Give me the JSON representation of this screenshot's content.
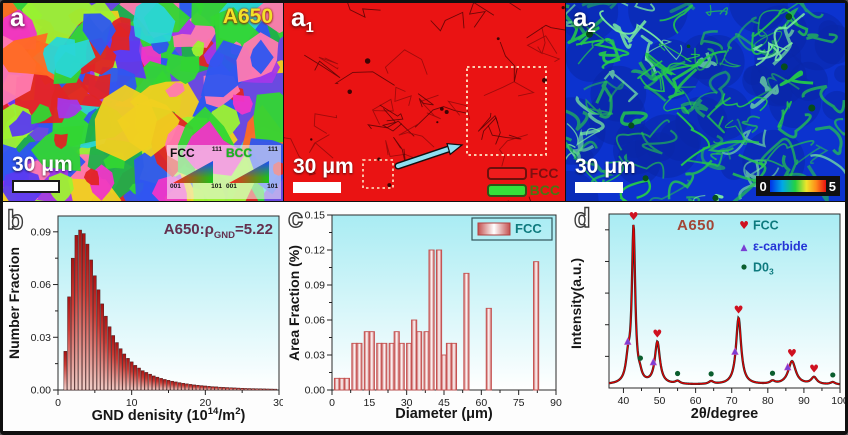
{
  "figure": {
    "panels": {
      "a": {
        "label": "a",
        "tag": "A650",
        "scalebar_text": "30 μm",
        "inset": {
          "fcc_label": "FCC",
          "bcc_label": "BCC",
          "corner_111": "111",
          "corner_001": "001",
          "corner_101": "101"
        }
      },
      "a1": {
        "label": "a",
        "sub": "1",
        "scalebar_text": "30 μm",
        "legend": [
          {
            "label": "FCC",
            "color": "#ee1c1c",
            "text_color": "#7e1010"
          },
          {
            "label": "BCC",
            "color": "#35e23a",
            "text_color": "#497612"
          }
        ]
      },
      "a2": {
        "label": "a",
        "sub": "2",
        "scalebar_text": "30 μm",
        "colorbar": {
          "min": "0",
          "max": "5"
        }
      }
    }
  },
  "chart_data": [
    {
      "id": "b",
      "panel_label": "b",
      "type": "bar",
      "title": "",
      "ylabel": "Number Fraction",
      "xlabel": "GND denisity (10^14/m^2)",
      "xlabel_parts": {
        "pre": "GND denisity (10",
        "sup1": "14",
        "mid": "/m",
        "sup2": "2",
        "end": ")"
      },
      "annotation": "A650: ρGND=5.22",
      "annotation_parts": {
        "name": "A650:",
        "symbol": "ρ",
        "sub": "GND",
        "value": "=5.22"
      },
      "x_start": 1.0,
      "x_step": 0.5,
      "values": [
        0.022,
        0.053,
        0.075,
        0.088,
        0.091,
        0.089,
        0.083,
        0.074,
        0.065,
        0.057,
        0.049,
        0.042,
        0.036,
        0.031,
        0.027,
        0.0235,
        0.0205,
        0.018,
        0.016,
        0.014,
        0.0125,
        0.011,
        0.01,
        0.009,
        0.008,
        0.0073,
        0.0066,
        0.006,
        0.0055,
        0.005,
        0.0046,
        0.0042,
        0.0038,
        0.0035,
        0.0032,
        0.0029,
        0.0027,
        0.0025,
        0.0023,
        0.0021,
        0.0019,
        0.0018,
        0.0016,
        0.0015,
        0.0014,
        0.0013,
        0.0012,
        0.0011,
        0.001,
        0.0009,
        0.00085,
        0.0008,
        0.00075,
        0.0007,
        0.00065,
        0.0006,
        0.00055,
        0.0005
      ],
      "xlim": [
        0,
        30
      ],
      "ylim": [
        0,
        0.099
      ],
      "xticks": [
        0,
        10,
        20,
        30
      ],
      "yticks": [
        "0.00",
        "0.03",
        "0.06",
        "0.09"
      ],
      "bar_color_top": "#a81212",
      "bar_color_bottom": "#f0cfc9"
    },
    {
      "id": "c",
      "panel_label": "c",
      "type": "bar",
      "title": "",
      "ylabel": "Area Fraction (%)",
      "xlabel": "Diameter (μm)",
      "legend": [
        {
          "label": "FCC",
          "text_color": "#0e7a7e"
        }
      ],
      "x": [
        2,
        4,
        6,
        9,
        11,
        14,
        16,
        19,
        21,
        24,
        26,
        28,
        31,
        33,
        35,
        38,
        40,
        43,
        45,
        47,
        49,
        54,
        63,
        82
      ],
      "values": [
        0.01,
        0.01,
        0.01,
        0.04,
        0.04,
        0.05,
        0.05,
        0.04,
        0.04,
        0.04,
        0.05,
        0.04,
        0.04,
        0.06,
        0.05,
        0.05,
        0.12,
        0.12,
        0.03,
        0.04,
        0.04,
        0.1,
        0.07,
        0.11
      ],
      "xlim": [
        0,
        90
      ],
      "ylim": [
        0,
        0.15
      ],
      "xticks": [
        0,
        15,
        30,
        45,
        60,
        75,
        90
      ],
      "yticks": [
        "0.00",
        "0.03",
        "0.06",
        "0.09",
        "0.12",
        "0.15"
      ],
      "bar_edge_color": "#c4504f",
      "bar_center_color": "#ffffff"
    },
    {
      "id": "d",
      "panel_label": "d",
      "type": "line",
      "title": "",
      "ylabel": "Intensity(a.u.)",
      "xlabel": "2θ/degree",
      "annotation": "A650",
      "curve_color": "#e00000",
      "baseline": 0.02,
      "peaks_x_h_w": [
        [
          41.3,
          0.14,
          0.75
        ],
        [
          42.8,
          1.0,
          0.55
        ],
        [
          44.6,
          0.035,
          0.6
        ],
        [
          49.4,
          0.27,
          0.85
        ],
        [
          55.0,
          0.018,
          0.8
        ],
        [
          64.3,
          0.018,
          0.8
        ],
        [
          71.9,
          0.43,
          0.85
        ],
        [
          81.3,
          0.018,
          0.8
        ],
        [
          86.7,
          0.15,
          1.25
        ],
        [
          92.8,
          0.045,
          0.95
        ],
        [
          98.0,
          0.015,
          0.8
        ]
      ],
      "xlim": [
        36,
        100
      ],
      "ylim": [
        0,
        1.12
      ],
      "xticks": [
        40,
        50,
        60,
        70,
        80,
        90,
        100
      ],
      "markers": {
        "fcc": {
          "label": "FCC",
          "symbol": "heart",
          "color": "#cf1120",
          "text_color": "#0e7a7e",
          "x": [
            42.8,
            49.4,
            71.9,
            86.7,
            92.8
          ]
        },
        "carbide": {
          "label": "ε-carbide",
          "symbol": "triangle",
          "color": "#7a3fd4",
          "text_color": "#2433d6",
          "x": [
            41.2,
            48.3,
            70.9,
            85.5
          ]
        },
        "d03": {
          "label": "D0",
          "label_sub": "3",
          "symbol": "dot",
          "color": "#0b5e2e",
          "text_color": "#0e7a7e",
          "x": [
            44.7,
            55.0,
            64.3,
            81.3,
            98.0
          ]
        }
      }
    }
  ]
}
